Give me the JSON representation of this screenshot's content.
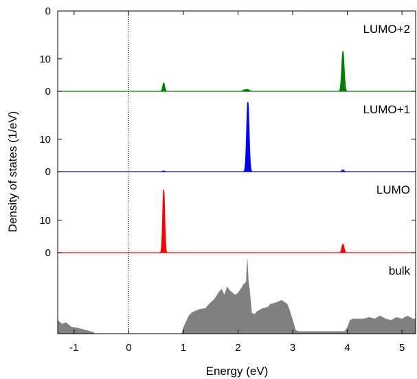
{
  "chart_data": {
    "type": "area",
    "xlabel": "Energy (eV)",
    "ylabel": "Density of states (1/eV)",
    "xlim": [
      -1.3,
      5.25
    ],
    "x_ticks": [
      -1,
      0,
      1,
      2,
      3,
      4,
      5
    ],
    "x_tick_labels": [
      "-1",
      "0",
      "1",
      "2",
      "3",
      "4",
      "5"
    ],
    "vline": {
      "x": 0,
      "style": "dotted"
    },
    "grid": false,
    "legend": "none",
    "panels": [
      {
        "name": "LUMO+2",
        "label": "LUMO+2",
        "color": "#008000",
        "ylim": [
          0,
          24
        ],
        "y_ticks": [
          0,
          10
        ],
        "y_tick_labels": [
          "0",
          "10"
        ],
        "top_tick_label": "0",
        "peaks": [
          {
            "x": 0.64,
            "height": 2.6,
            "width": 0.018
          },
          {
            "x": 2.12,
            "height": 0.4,
            "width": 0.03
          },
          {
            "x": 2.18,
            "height": 0.5,
            "width": 0.03
          },
          {
            "x": 3.92,
            "height": 12.3,
            "width": 0.022
          }
        ]
      },
      {
        "name": "LUMO+1",
        "label": "LUMO+1",
        "color": "#0000ff",
        "ylim": [
          0,
          24
        ],
        "y_ticks": [
          0,
          10
        ],
        "y_tick_labels": [
          "0",
          "10"
        ],
        "peaks": [
          {
            "x": 2.18,
            "height": 21.5,
            "width": 0.022
          },
          {
            "x": 0.64,
            "height": 0.2,
            "width": 0.02
          },
          {
            "x": 3.92,
            "height": 0.5,
            "width": 0.02
          }
        ]
      },
      {
        "name": "LUMO",
        "label": "LUMO",
        "color": "#ff0000",
        "ylim": [
          0,
          24
        ],
        "y_ticks": [
          0,
          10
        ],
        "y_tick_labels": [
          "0",
          "10"
        ],
        "peaks": [
          {
            "x": 0.64,
            "height": 19.5,
            "width": 0.018
          },
          {
            "x": 3.92,
            "height": 2.6,
            "width": 0.02
          }
        ]
      },
      {
        "name": "bulk",
        "label": "bulk",
        "color": "#808080",
        "ylim": [
          0,
          1
        ],
        "y_ticks": [],
        "y_tick_labels": [],
        "x": [
          -1.3,
          -1.22,
          -1.15,
          -1.05,
          -0.95,
          -0.85,
          -0.75,
          -0.65,
          -0.62,
          0.97,
          1.0,
          1.05,
          1.1,
          1.15,
          1.2,
          1.3,
          1.4,
          1.45,
          1.5,
          1.55,
          1.6,
          1.65,
          1.7,
          1.75,
          1.8,
          1.85,
          1.9,
          1.95,
          2.0,
          2.05,
          2.1,
          2.15,
          2.17,
          2.19,
          2.21,
          2.25,
          2.3,
          2.35,
          2.4,
          2.45,
          2.5,
          2.55,
          2.6,
          2.7,
          2.8,
          2.9,
          2.95,
          3.0,
          3.05,
          3.1,
          3.15,
          3.2,
          3.25,
          3.3,
          3.4,
          3.5,
          3.6,
          3.7,
          3.8,
          3.9,
          3.95,
          4.0,
          4.05,
          4.1,
          4.2,
          4.3,
          4.4,
          4.5,
          4.6,
          4.7,
          4.8,
          4.9,
          5.0,
          5.1,
          5.2,
          5.25
        ],
        "y": [
          0.18,
          0.13,
          0.15,
          0.09,
          0.08,
          0.06,
          0.04,
          0.02,
          0.0,
          0.0,
          0.08,
          0.16,
          0.24,
          0.28,
          0.3,
          0.33,
          0.34,
          0.38,
          0.42,
          0.45,
          0.5,
          0.56,
          0.6,
          0.52,
          0.63,
          0.58,
          0.55,
          0.52,
          0.55,
          0.6,
          0.66,
          0.7,
          1.0,
          0.7,
          0.6,
          0.28,
          0.26,
          0.3,
          0.32,
          0.34,
          0.35,
          0.36,
          0.4,
          0.42,
          0.45,
          0.4,
          0.3,
          0.18,
          0.05,
          0.03,
          0.03,
          0.03,
          0.03,
          0.03,
          0.03,
          0.03,
          0.03,
          0.03,
          0.03,
          0.03,
          0.03,
          0.08,
          0.18,
          0.2,
          0.2,
          0.2,
          0.22,
          0.2,
          0.24,
          0.2,
          0.18,
          0.22,
          0.2,
          0.24,
          0.2,
          0.2
        ]
      }
    ]
  }
}
